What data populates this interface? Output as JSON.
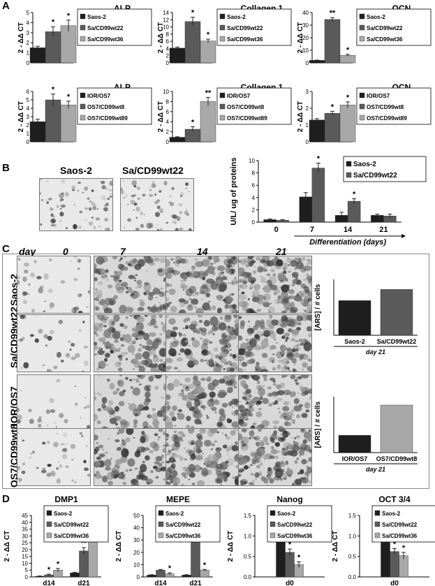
{
  "panels": {
    "A": "A",
    "B": "B",
    "C": "C",
    "D": "D"
  },
  "colors": {
    "dark": "#1e1e1e",
    "mid": "#5a5a5a",
    "light": "#a8a8a8",
    "axis": "#000000"
  },
  "panelB": {
    "img1_label": "Saos-2",
    "img2_label": "Sa/CD99wt22"
  },
  "panelC": {
    "day_word": "day",
    "days": [
      "0",
      "7",
      "14",
      "21"
    ],
    "rows": [
      "Saos-2",
      "Sa/CD99wt22",
      "IOR/OS7",
      "OS7/CD99wt8"
    ]
  },
  "chart_data": [
    {
      "id": "A1",
      "type": "bar",
      "title": "ALP",
      "ylabel": "2 - ΔΔ CT",
      "ylim": [
        0,
        5
      ],
      "yticks": [
        0,
        1,
        2,
        3,
        4,
        5
      ],
      "categories": [
        ""
      ],
      "series": [
        {
          "name": "Saos-2",
          "values": [
            1.5
          ],
          "err": [
            0.15
          ],
          "sig": [
            ""
          ]
        },
        {
          "name": "Sa/CD99wt22",
          "values": [
            3.1
          ],
          "err": [
            0.5
          ],
          "sig": [
            "*"
          ]
        },
        {
          "name": "Sa/CD99wt36",
          "values": [
            3.7
          ],
          "err": [
            0.55
          ],
          "sig": [
            "*"
          ]
        }
      ]
    },
    {
      "id": "A2",
      "type": "bar",
      "title": "Collagen 1",
      "ylabel": "2 - ΔΔ CT",
      "ylim": [
        0,
        14
      ],
      "yticks": [
        0,
        2,
        4,
        6,
        8,
        10,
        12,
        14
      ],
      "categories": [
        ""
      ],
      "series": [
        {
          "name": "Saos-2",
          "values": [
            4.1
          ],
          "err": [
            0.3
          ],
          "sig": [
            ""
          ]
        },
        {
          "name": "Sa/CD99wt22",
          "values": [
            11.5
          ],
          "err": [
            1.2
          ],
          "sig": [
            "*"
          ]
        },
        {
          "name": "Sa/CD99wt36",
          "values": [
            6.1
          ],
          "err": [
            0.5
          ],
          "sig": [
            "*"
          ]
        }
      ]
    },
    {
      "id": "A3",
      "type": "bar",
      "title": "OCN",
      "ylabel": "2 - ΔΔ CT",
      "ylim": [
        0,
        40
      ],
      "yticks": [
        0,
        10,
        20,
        30,
        40
      ],
      "categories": [
        ""
      ],
      "series": [
        {
          "name": "Saos-2",
          "values": [
            2
          ],
          "err": [
            0.2
          ],
          "sig": [
            ""
          ]
        },
        {
          "name": "Sa/CD99wt22",
          "values": [
            34.5
          ],
          "err": [
            1.5
          ],
          "sig": [
            "**"
          ]
        },
        {
          "name": "Sa/CD99wt36",
          "values": [
            6
          ],
          "err": [
            0.8
          ],
          "sig": [
            "*"
          ]
        }
      ]
    },
    {
      "id": "A4",
      "type": "bar",
      "title": "ALP",
      "ylabel": "2 - ΔΔ CT",
      "ylim": [
        0,
        6
      ],
      "yticks": [
        0,
        1,
        2,
        3,
        4,
        5,
        6
      ],
      "categories": [
        ""
      ],
      "series": [
        {
          "name": "IOR/OS7",
          "values": [
            2.4
          ],
          "err": [
            0.3
          ],
          "sig": [
            ""
          ]
        },
        {
          "name": "OS7/CD99wt8",
          "values": [
            5
          ],
          "err": [
            0.7
          ],
          "sig": [
            "*"
          ]
        },
        {
          "name": "OS7/CD99wt89",
          "values": [
            4.4
          ],
          "err": [
            0.45
          ],
          "sig": [
            "*"
          ]
        }
      ]
    },
    {
      "id": "A5",
      "type": "bar",
      "title": "Collagen 1",
      "ylabel": "2 - ΔΔ CT",
      "ylim": [
        0,
        10
      ],
      "yticks": [
        0,
        2,
        4,
        6,
        8,
        10
      ],
      "categories": [
        ""
      ],
      "series": [
        {
          "name": "IOR/OS7",
          "values": [
            0.9
          ],
          "err": [
            0.1
          ],
          "sig": [
            ""
          ]
        },
        {
          "name": "OS7/CD99wt8",
          "values": [
            2.5
          ],
          "err": [
            0.5
          ],
          "sig": [
            "*"
          ]
        },
        {
          "name": "OS7/CD99wt89",
          "values": [
            8
          ],
          "err": [
            0.8
          ],
          "sig": [
            "**"
          ]
        }
      ]
    },
    {
      "id": "A6",
      "type": "bar",
      "title": "OCN",
      "ylabel": "2 - ΔΔ CT",
      "ylim": [
        0,
        3
      ],
      "yticks": [
        0,
        1,
        2,
        3
      ],
      "categories": [
        ""
      ],
      "series": [
        {
          "name": "IOR/OS7",
          "values": [
            1.3
          ],
          "err": [
            0.08
          ],
          "sig": [
            ""
          ]
        },
        {
          "name": "OS7/CD99wt8",
          "values": [
            1.7
          ],
          "err": [
            0.12
          ],
          "sig": [
            "*"
          ]
        },
        {
          "name": "OS7/CD99wt89",
          "values": [
            2.2
          ],
          "err": [
            0.18
          ],
          "sig": [
            "*"
          ]
        }
      ]
    },
    {
      "id": "B",
      "type": "bar",
      "title": "",
      "ylabel": "U/L/ ug of proteins",
      "xlabel": "Differentiation (days)",
      "ylim": [
        0,
        10
      ],
      "yticks": [
        0,
        2,
        4,
        6,
        8,
        10
      ],
      "categories": [
        "0",
        "7",
        "14",
        "21"
      ],
      "series": [
        {
          "name": "Saos-2",
          "values": [
            0.4,
            4.1,
            1.1,
            1.1
          ],
          "err": [
            0.1,
            0.7,
            0.5,
            0.2
          ],
          "sig": [
            "",
            "",
            "",
            ""
          ]
        },
        {
          "name": "Sa/CD99wt22",
          "values": [
            0.3,
            8.8,
            3.4,
            1.0
          ],
          "err": [
            0.1,
            0.8,
            0.4,
            0.3
          ],
          "sig": [
            "",
            "*",
            "*",
            ""
          ]
        }
      ]
    },
    {
      "id": "C1",
      "type": "bar",
      "title": "",
      "ylabel": "[ARS] / # cells",
      "xlabel": "day 21",
      "ylim": [
        0,
        5
      ],
      "yticks": [],
      "categories": [
        "Saos-2",
        "Sa/CD99wt22"
      ],
      "series": [
        {
          "name": "",
          "values": [
            3.1,
            4.1
          ],
          "colors": [
            "dark",
            "mid"
          ]
        }
      ]
    },
    {
      "id": "C2",
      "type": "bar",
      "title": "",
      "ylabel": "[ARS] / # cells",
      "xlabel": "day 21",
      "ylim": [
        0,
        12
      ],
      "yticks": [],
      "categories": [
        "IOR/OS7",
        "OS7/CD99wt8"
      ],
      "series": [
        {
          "name": "",
          "values": [
            3.7,
            10.2
          ],
          "colors": [
            "dark",
            "light"
          ]
        }
      ]
    },
    {
      "id": "D1",
      "type": "bar",
      "title": "DMP1",
      "ylabel": "2 - ΔΔ CT",
      "ylim": [
        0,
        45
      ],
      "yticks": [
        0,
        5,
        10,
        15,
        20,
        25,
        30,
        35,
        40,
        45
      ],
      "categories": [
        "d14",
        "d21"
      ],
      "series": [
        {
          "name": "Saos-2",
          "values": [
            0.5,
            3
          ],
          "err": [
            0.2,
            0.4
          ],
          "sig": [
            "",
            ""
          ]
        },
        {
          "name": "Sa/CD99wt22",
          "values": [
            1.5,
            19
          ],
          "err": [
            0.5,
            2.5
          ],
          "sig": [
            "*",
            "**"
          ]
        },
        {
          "name": "Sa/CD99wt36",
          "values": [
            5,
            40
          ],
          "err": [
            1.2,
            2
          ],
          "sig": [
            "*",
            "**"
          ]
        }
      ]
    },
    {
      "id": "D2",
      "type": "bar",
      "title": "MEPE",
      "ylabel": "2 - ΔΔ CT",
      "ylim": [
        0,
        50
      ],
      "yticks": [
        0,
        10,
        20,
        30,
        40,
        50
      ],
      "categories": [
        "d14",
        "d21"
      ],
      "series": [
        {
          "name": "Saos-2",
          "values": [
            1.5,
            1.5
          ],
          "err": [
            0.3,
            0.3
          ],
          "sig": [
            "",
            ""
          ]
        },
        {
          "name": "Sa/CD99wt22",
          "values": [
            5.5,
            40
          ],
          "err": [
            0.6,
            5
          ],
          "sig": [
            "",
            ""
          ]
        },
        {
          "name": "Sa/CD99wt36",
          "values": [
            2.5,
            5.5
          ],
          "err": [
            0.8,
            0.6
          ],
          "sig": [
            "*",
            "*"
          ]
        }
      ]
    },
    {
      "id": "D3",
      "type": "bar",
      "title": "Nanog",
      "ylabel": "2 - ΔΔ CT",
      "ylim": [
        0,
        1.5
      ],
      "yticks": [
        0,
        0.5,
        1.0,
        1.5
      ],
      "tickfmt": 1,
      "categories": [
        "d0"
      ],
      "series": [
        {
          "name": "Saos-2",
          "values": [
            1.0
          ],
          "err": [
            0.04
          ],
          "sig": [
            ""
          ]
        },
        {
          "name": "Sa/CD99wt22",
          "values": [
            0.6
          ],
          "err": [
            0.08
          ],
          "sig": [
            "*"
          ]
        },
        {
          "name": "Sa/CD99wt36",
          "values": [
            0.3
          ],
          "err": [
            0.07
          ],
          "sig": [
            "*"
          ]
        }
      ]
    },
    {
      "id": "D4",
      "type": "bar",
      "title": "OCT 3/4",
      "ylabel": "2 - ΔΔ CT",
      "ylim": [
        0,
        1.5
      ],
      "yticks": [
        0,
        0.5,
        1.0,
        1.5
      ],
      "tickfmt": 1,
      "categories": [
        "d0"
      ],
      "series": [
        {
          "name": "Saos-2",
          "values": [
            1.0
          ],
          "err": [
            0.05
          ],
          "sig": [
            ""
          ]
        },
        {
          "name": "Sa/CD99wt22",
          "values": [
            0.62
          ],
          "err": [
            0.07
          ],
          "sig": [
            "*"
          ]
        },
        {
          "name": "Sa/CD99wt36",
          "values": [
            0.52
          ],
          "err": [
            0.08
          ],
          "sig": [
            "*"
          ]
        }
      ]
    }
  ]
}
